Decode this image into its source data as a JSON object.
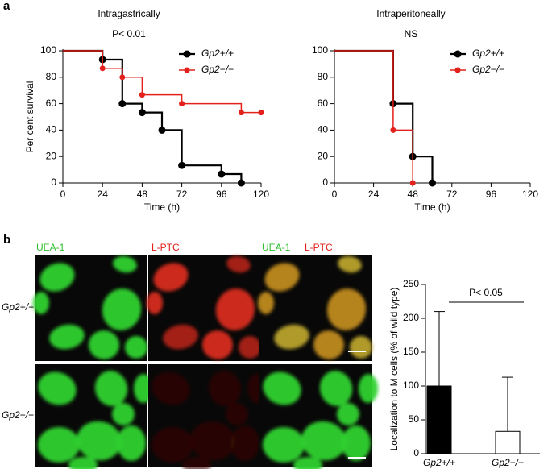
{
  "panel_labels": [
    "a",
    "b"
  ],
  "image_panel": {
    "column_labels": [
      "UEA-1",
      "L-PTC",
      "UEA-1",
      "L-PTC"
    ],
    "row_labels": [
      "Gp2+/+",
      "Gp2−/−"
    ]
  },
  "chart_data": [
    {
      "type": "step",
      "title": "Intragastrically",
      "subtitle": "P< 0.01",
      "x_label": "Time (h)",
      "y_label": "Per cent survival",
      "xlim": [
        0,
        120
      ],
      "xticks": [
        0,
        24,
        48,
        72,
        96,
        120
      ],
      "ylim": [
        0,
        100
      ],
      "yticks": [
        0,
        20,
        40,
        60,
        80,
        100
      ],
      "legend": "upper right",
      "series": [
        {
          "name": "Gp2+/+",
          "color": "#000000",
          "x": [
            0,
            24,
            36,
            48,
            60,
            72,
            96,
            108
          ],
          "values": [
            100,
            93.3,
            60,
            53.3,
            40,
            13.3,
            6.7,
            0
          ]
        },
        {
          "name": "Gp2−/−",
          "color": "#e3201b",
          "x": [
            0,
            24,
            36,
            48,
            72,
            108,
            120
          ],
          "values": [
            100,
            86.7,
            80,
            66.7,
            60,
            53.3,
            53.3
          ]
        }
      ]
    },
    {
      "type": "step",
      "title": "Intraperitoneally",
      "subtitle": "NS",
      "x_label": "Time (h)",
      "xlim": [
        0,
        120
      ],
      "xticks": [
        0,
        24,
        48,
        72,
        96,
        120
      ],
      "ylim": [
        0,
        100
      ],
      "yticks": [
        0,
        20,
        40,
        60,
        80,
        100
      ],
      "legend": "upper right",
      "series": [
        {
          "name": "Gp2+/+",
          "color": "#000000",
          "x": [
            0,
            36,
            48,
            60
          ],
          "values": [
            100,
            60,
            20,
            0
          ]
        },
        {
          "name": "Gp2−/−",
          "color": "#e3201b",
          "x": [
            0,
            36,
            48
          ],
          "values": [
            100,
            40,
            0
          ]
        }
      ]
    },
    {
      "type": "bar",
      "y_label": "Localization to M cells (% of wild type)",
      "categories": [
        "Gp2+/+",
        "Gp2−/−"
      ],
      "values": [
        100,
        33
      ],
      "errors": [
        110,
        80
      ],
      "colors": [
        "#000000",
        "#ffffff"
      ],
      "ylim": [
        0,
        250
      ],
      "yticks": [
        0,
        50,
        100,
        150,
        200,
        250
      ],
      "annotation": "P< 0.05"
    }
  ]
}
